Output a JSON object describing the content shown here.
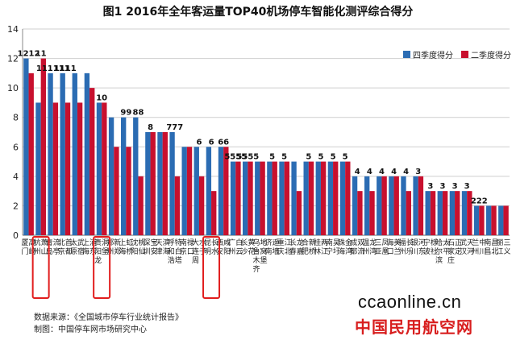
{
  "chart_data": {
    "type": "bar",
    "title": "图1  2016年全年客运量TOP40机场停车智能化测评综合得分",
    "ylim": [
      0,
      14
    ],
    "yticks": [
      0,
      2,
      4,
      6,
      8,
      10,
      12,
      14
    ],
    "grid": true,
    "legend_position": "top-right",
    "categories": [
      "厦门高崎",
      "杭州萧山",
      "青岛流亭",
      "北京首都",
      "太原武宿",
      "上海浦东",
      "贵阳龙洞堡",
      "郑州新郑",
      "上海虹桥",
      "沈阳桃仙",
      "深圳宝安",
      "天津滨海",
      "呼和浩特白塔",
      "南京禄口",
      "大连周水子",
      "昆明长水",
      "西安咸阳",
      "广州白云",
      "长沙黄花",
      "乌鲁木齐地窝堡",
      "济南遥墙",
      "重庆江北",
      "长春龙嘉",
      "合肥新桥",
      "桂林两江",
      "南宁吴圩",
      "珠海金湾",
      "成都双流",
      "温州龙湾",
      "三亚凤凰",
      "海口美兰",
      "福州长乐",
      "银川河东",
      "宁波栎社",
      "哈尔滨太平",
      "石家庄正定",
      "武汉天河",
      "兰州中川",
      "南昌昌北",
      "丽江三义"
    ],
    "highlighted": [
      "杭州萧山",
      "贵阳龙洞堡",
      "昆明长水"
    ],
    "series": [
      {
        "name": "四季度得分",
        "color": "#2b6cb3",
        "values": [
          12,
          9,
          11,
          11,
          11,
          11,
          9,
          8,
          8,
          8,
          7,
          7,
          7,
          6,
          6,
          6,
          6,
          5,
          5,
          5,
          5,
          5,
          5,
          5,
          5,
          5,
          5,
          4,
          4,
          4,
          4,
          4,
          4,
          3,
          3,
          3,
          3,
          2,
          2,
          2
        ]
      },
      {
        "name": "二季度得分",
        "color": "#c8102e",
        "values": [
          11,
          12,
          9,
          9,
          9,
          10,
          9,
          6,
          6,
          4,
          7,
          7,
          4,
          6,
          4,
          3,
          6,
          5,
          5,
          5,
          5,
          5,
          3,
          5,
          5,
          5,
          5,
          3,
          3,
          4,
          4,
          3,
          4,
          3,
          3,
          3,
          3,
          2,
          2,
          2
        ]
      }
    ],
    "bar_labels": [
      "1212",
      "11",
      "111111",
      "1111",
      "",
      "",
      "10",
      "",
      "99",
      "88",
      "8",
      "",
      "777",
      "",
      "6",
      "6",
      "66",
      "5555",
      "5555",
      "",
      "5",
      "5",
      "",
      "5",
      "5",
      "5",
      "5",
      "4",
      "4",
      "4",
      "4",
      "4",
      "3",
      "3",
      "3",
      "3",
      "3",
      "222",
      "",
      ""
    ]
  },
  "footnotes": {
    "source": "数据来源：《全国城市停车行业统计报告》",
    "made_by": "制图：中国停车网市场研究中心"
  },
  "branding": {
    "en": "ccaonline.cn",
    "cn": "中国民用航空网"
  }
}
